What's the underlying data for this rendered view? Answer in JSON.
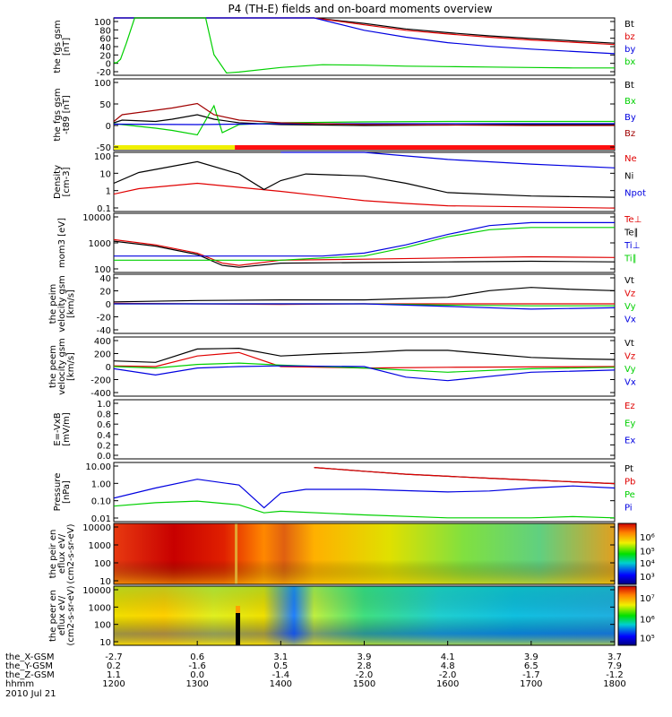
{
  "title": "P4 (TH-E) fields and on-board moments overview",
  "date_label": "2010 Jul 21",
  "colorbar_exponents": {
    "ion": [
      "10⁶",
      "10⁵",
      "10⁴",
      "10³"
    ],
    "electron": [
      "10⁷",
      "10⁶",
      "10⁵"
    ]
  },
  "ephemeris": {
    "row_labels": [
      "the_X-GSM",
      "the_Y-GSM",
      "the_Z-GSM",
      "hhmm"
    ],
    "columns": [
      [
        "-2.7",
        "0.2",
        "1.1",
        "1200"
      ],
      [
        "0.6",
        "-1.6",
        "0.0",
        "1300"
      ],
      [
        "3.1",
        "0.5",
        "-1.4",
        "1400"
      ],
      [
        "3.9",
        "2.8",
        "-2.0",
        "1500"
      ],
      [
        "4.1",
        "4.8",
        "-2.0",
        "1600"
      ],
      [
        "3.9",
        "6.5",
        "-1.7",
        "1700"
      ],
      [
        "3.7",
        "7.9",
        "-1.2",
        "1800"
      ]
    ]
  },
  "chart_data": [
    {
      "type": "line",
      "ylabel": "the fgs gsm [nT]",
      "ytick_labels": [
        "100",
        "80",
        "60",
        "40",
        "20",
        "0",
        "-20"
      ],
      "ylim": [
        -25,
        100
      ],
      "legend_position": "right",
      "series": [
        {
          "name": "Bt",
          "color": "#000000",
          "x": [
            1200,
            1205,
            1210,
            1240,
            1250,
            1300,
            1400,
            1440,
            1500,
            1550,
            1600,
            1650,
            1700,
            1750,
            1800
          ],
          "y": [
            100,
            100,
            100,
            100,
            100,
            100,
            100,
            100,
            88,
            76,
            68,
            61,
            55,
            50,
            45
          ]
        },
        {
          "name": "bz",
          "color": "#e00000",
          "x": [
            1200,
            1300,
            1400,
            1440,
            1500,
            1550,
            1600,
            1650,
            1700,
            1750,
            1800
          ],
          "y": [
            100,
            100,
            100,
            100,
            85,
            73,
            65,
            58,
            52,
            47,
            42
          ]
        },
        {
          "name": "by",
          "color": "#0000e0",
          "x": [
            1200,
            1300,
            1400,
            1440,
            1500,
            1550,
            1600,
            1650,
            1700,
            1750,
            1800
          ],
          "y": [
            100,
            100,
            100,
            100,
            73,
            58,
            46,
            38,
            32,
            27,
            22
          ]
        },
        {
          "name": "bx",
          "color": "#00d000",
          "x": [
            1200,
            1203,
            1208,
            1215,
            1225,
            1235,
            1240,
            1280,
            1310,
            1320,
            1335,
            1350,
            1400,
            1450,
            1500,
            1550,
            1600,
            1650,
            1700,
            1750,
            1800
          ],
          "y": [
            3,
            2,
            10,
            45,
            100,
            100,
            100,
            100,
            100,
            20,
            -20,
            -18,
            -8,
            -2,
            -3,
            -5,
            -6,
            -7,
            -8,
            -9,
            -9
          ]
        }
      ]
    },
    {
      "type": "line",
      "ylabel": "the fgs gsm -t89 [nT]",
      "ytick_labels": [
        "100",
        "50",
        "0",
        "-50"
      ],
      "ylim": [
        -60,
        100
      ],
      "legend_position": "right",
      "series": [
        {
          "name": "Bt",
          "color": "#000000",
          "x": [
            1200,
            1210,
            1250,
            1270,
            1300,
            1320,
            1350,
            1400,
            1500,
            1600,
            1700,
            1800
          ],
          "y": [
            2,
            8,
            5,
            10,
            20,
            10,
            2,
            -2,
            -4,
            -3,
            -2,
            -2
          ]
        },
        {
          "name": "Bx",
          "color": "#00d000",
          "x": [
            1200,
            1210,
            1250,
            1270,
            1300,
            1320,
            1330,
            1350,
            1400,
            1500,
            1600,
            1700,
            1800
          ],
          "y": [
            0,
            -2,
            -10,
            -15,
            -25,
            40,
            -20,
            -2,
            2,
            4,
            5,
            5,
            5
          ]
        },
        {
          "name": "By",
          "color": "#0000e0",
          "x": [
            1200,
            1300,
            1400,
            1500,
            1600,
            1700,
            1800
          ],
          "y": [
            -1,
            -2,
            0,
            0,
            0,
            0,
            0
          ]
        },
        {
          "name": "Bz",
          "color": "#a00000",
          "x": [
            1200,
            1210,
            1250,
            1270,
            1300,
            1320,
            1350,
            1400,
            1500,
            1600,
            1700,
            1800
          ],
          "y": [
            5,
            20,
            30,
            35,
            45,
            20,
            8,
            2,
            -2,
            -3,
            -4,
            -4
          ]
        }
      ]
    },
    {
      "type": "line",
      "ylabel": "Density [cm-3]",
      "ytick_labels": [
        "100",
        "10",
        "1",
        "0.1"
      ],
      "ylim": [
        0.03,
        200
      ],
      "scale": "log",
      "legend_position": "right",
      "series": [
        {
          "name": "Ne",
          "color": "#e00000",
          "x": [
            1200,
            1230,
            1300,
            1350,
            1400,
            1450,
            1500,
            1550,
            1600,
            1700,
            1800
          ],
          "y": [
            0.4,
            0.9,
            2.0,
            1.1,
            0.6,
            0.3,
            0.15,
            0.1,
            0.07,
            0.06,
            0.05
          ]
        },
        {
          "name": "Ni",
          "color": "#000000",
          "x": [
            1200,
            1230,
            1300,
            1350,
            1380,
            1400,
            1430,
            1500,
            1550,
            1600,
            1700,
            1800
          ],
          "y": [
            2,
            10,
            50,
            8,
            0.8,
            3,
            8,
            6,
            2,
            0.5,
            0.3,
            0.25
          ]
        },
        {
          "name": "Npot",
          "color": "#0000e0",
          "x": [
            1400,
            1500,
            1600,
            1700,
            1800
          ],
          "y": [
            200,
            200,
            70,
            35,
            20
          ]
        }
      ]
    },
    {
      "type": "line",
      "ylabel": "mom3 [eV]",
      "ytick_labels": [
        "10000",
        "1000",
        "100"
      ],
      "ylim": [
        60,
        20000
      ],
      "scale": "log",
      "legend_position": "right",
      "series": [
        {
          "name": "Te⊥",
          "color": "#e00000",
          "x": [
            1200,
            1250,
            1300,
            1330,
            1350,
            1400,
            1500,
            1600,
            1700,
            1800
          ],
          "y": [
            1500,
            900,
            400,
            150,
            120,
            200,
            220,
            250,
            280,
            260
          ]
        },
        {
          "name": "Te∥",
          "color": "#000000",
          "x": [
            1200,
            1250,
            1300,
            1330,
            1350,
            1400,
            1500,
            1600,
            1700,
            1800
          ],
          "y": [
            1300,
            800,
            350,
            120,
            100,
            150,
            160,
            170,
            180,
            170
          ]
        },
        {
          "name": "Ti⊥",
          "color": "#0000e0",
          "x": [
            1200,
            1300,
            1400,
            1450,
            1500,
            1550,
            1600,
            1650,
            1700,
            1800
          ],
          "y": [
            300,
            300,
            300,
            300,
            400,
            900,
            2500,
            6000,
            8000,
            8000
          ]
        },
        {
          "name": "Ti∥",
          "color": "#00d000",
          "x": [
            1200,
            1300,
            1400,
            1450,
            1500,
            1550,
            1600,
            1650,
            1700,
            1800
          ],
          "y": [
            200,
            200,
            200,
            250,
            300,
            700,
            2000,
            4000,
            5000,
            5000
          ]
        }
      ]
    },
    {
      "type": "line",
      "ylabel": "the peim velocity gsm [km/s]",
      "ytick_labels": [
        "40",
        "20",
        "0",
        "-20",
        "-40"
      ],
      "ylim": [
        -45,
        45
      ],
      "legend_position": "right",
      "series": [
        {
          "name": "Vt",
          "color": "#000000",
          "x": [
            1200,
            1300,
            1400,
            1500,
            1600,
            1650,
            1700,
            1750,
            1800
          ],
          "y": [
            3,
            5,
            6,
            6,
            10,
            20,
            25,
            22,
            20
          ]
        },
        {
          "name": "Vz",
          "color": "#e00000",
          "x": [
            1200,
            1300,
            1400,
            1500,
            1600,
            1700,
            1800
          ],
          "y": [
            1,
            0,
            -1,
            0,
            0,
            0,
            0
          ]
        },
        {
          "name": "Vy",
          "color": "#00d000",
          "x": [
            1200,
            1300,
            1400,
            1500,
            1600,
            1700,
            1800
          ],
          "y": [
            0,
            0,
            0,
            0,
            -2,
            -3,
            -3
          ]
        },
        {
          "name": "Vx",
          "color": "#0000e0",
          "x": [
            1200,
            1300,
            1400,
            1500,
            1600,
            1700,
            1800
          ],
          "y": [
            0,
            0,
            0,
            0,
            -4,
            -8,
            -6
          ]
        }
      ]
    },
    {
      "type": "line",
      "ylabel": "the peem velocity gsm [km/s]",
      "ytick_labels": [
        "400",
        "200",
        "0",
        "-200",
        "-400"
      ],
      "ylim": [
        -420,
        420
      ],
      "legend_position": "right",
      "series": [
        {
          "name": "Vt",
          "color": "#000000",
          "x": [
            1200,
            1250,
            1300,
            1350,
            1400,
            1450,
            1500,
            1550,
            1600,
            1650,
            1700,
            1750,
            1800
          ],
          "y": [
            80,
            60,
            250,
            260,
            150,
            180,
            200,
            230,
            230,
            180,
            130,
            110,
            100
          ]
        },
        {
          "name": "Vz",
          "color": "#e00000",
          "x": [
            1200,
            1250,
            1300,
            1350,
            1400,
            1500,
            1600,
            1700,
            1800
          ],
          "y": [
            10,
            0,
            150,
            200,
            0,
            -20,
            -10,
            -5,
            0
          ]
        },
        {
          "name": "Vy",
          "color": "#00d000",
          "x": [
            1200,
            1250,
            1300,
            1350,
            1400,
            1500,
            1600,
            1700,
            1800
          ],
          "y": [
            0,
            -20,
            30,
            50,
            20,
            -20,
            -80,
            -30,
            -10
          ]
        },
        {
          "name": "Vx",
          "color": "#0000e0",
          "x": [
            1200,
            1250,
            1300,
            1350,
            1400,
            1500,
            1550,
            1600,
            1700,
            1800
          ],
          "y": [
            -30,
            -120,
            -20,
            0,
            10,
            0,
            -150,
            -200,
            -80,
            -50
          ]
        }
      ]
    },
    {
      "type": "line",
      "ylabel": "E=-VxB [mV/m]",
      "ytick_labels": [
        "1.0",
        "0.8",
        "0.6",
        "0.4",
        "0.2",
        "0.0"
      ],
      "ylim": [
        0,
        1
      ],
      "legend_position": "right",
      "series": [
        {
          "name": "Ez",
          "color": "#e00000",
          "x": [],
          "y": []
        },
        {
          "name": "Ey",
          "color": "#00d000",
          "x": [],
          "y": []
        },
        {
          "name": "Ex",
          "color": "#0000e0",
          "x": [],
          "y": []
        }
      ]
    },
    {
      "type": "line",
      "ylabel": "Pressure [nPa]",
      "ytick_labels": [
        "10.00",
        "1.00",
        "0.10",
        "0.01"
      ],
      "ylim": [
        0.006,
        20
      ],
      "scale": "log",
      "legend_position": "right",
      "series": [
        {
          "name": "Pt",
          "color": "#000000",
          "x": [
            1440,
            1500,
            1550,
            1600,
            1650,
            1700,
            1750,
            1800
          ],
          "y": [
            10,
            6,
            4,
            3,
            2.3,
            1.8,
            1.4,
            1.1
          ]
        },
        {
          "name": "Pb",
          "color": "#e00000",
          "x": [
            1440,
            1500,
            1550,
            1600,
            1650,
            1700,
            1750,
            1800
          ],
          "y": [
            10,
            6,
            4,
            3,
            2.3,
            1.8,
            1.4,
            1.1
          ]
        },
        {
          "name": "Pe",
          "color": "#00d000",
          "x": [
            1200,
            1250,
            1300,
            1350,
            1380,
            1400,
            1500,
            1600,
            1700,
            1750,
            1800
          ],
          "y": [
            0.05,
            0.08,
            0.1,
            0.06,
            0.02,
            0.025,
            0.015,
            0.01,
            0.01,
            0.012,
            0.01
          ]
        },
        {
          "name": "Pi",
          "color": "#0000e0",
          "x": [
            1200,
            1250,
            1300,
            1350,
            1380,
            1400,
            1430,
            1500,
            1600,
            1650,
            1700,
            1750,
            1800
          ],
          "y": [
            0.15,
            0.6,
            2.0,
            0.9,
            0.04,
            0.3,
            0.5,
            0.5,
            0.35,
            0.4,
            0.6,
            0.8,
            0.6
          ]
        }
      ]
    },
    {
      "type": "heatmap",
      "ylabel": "the peir en eflux eV/ (cm2-s-sr-eV)",
      "ytick_labels": [
        "10000",
        "1000",
        "100",
        "10"
      ],
      "ylim": [
        7,
        20000
      ],
      "scale": "log",
      "colorbar": "log"
    },
    {
      "type": "heatmap",
      "ylabel": "the peer en eflux eV/ (cm2-s-sr-eV)",
      "ytick_labels": [
        "10000",
        "1000",
        "100",
        "10"
      ],
      "ylim": [
        7,
        20000
      ],
      "scale": "log",
      "colorbar": "log"
    }
  ]
}
